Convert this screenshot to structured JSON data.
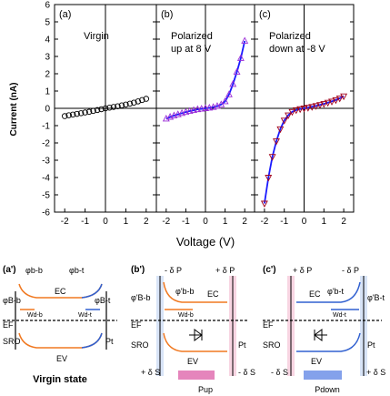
{
  "figure": {
    "top": {
      "ylabel": "Current (nA)",
      "xlabel": "Voltage (V)",
      "ytick_labels": [
        "6",
        "5",
        "4",
        "3",
        "2",
        "1",
        "0",
        "-1",
        "-2",
        "-3",
        "-4",
        "-5",
        "-6"
      ],
      "xtick_labels": [
        "-2",
        "-1",
        "0",
        "1",
        "2"
      ],
      "panels": [
        {
          "id": "a",
          "tag": "(a)",
          "caption": [
            "Virgin"
          ]
        },
        {
          "id": "b",
          "tag": "(b)",
          "caption": [
            "Polarized",
            "up at 8 V"
          ]
        },
        {
          "id": "c",
          "tag": "(c)",
          "caption": [
            "Polarized",
            "down at -8 V"
          ]
        }
      ]
    },
    "bottom": {
      "a": {
        "tag": "(a')",
        "phi_bb": "φb-b",
        "phi_bt": "φb-t",
        "phi_Bb": "φB-b",
        "phi_Bt": "φB-t",
        "Ec": "EC",
        "Ef": "EF",
        "Ev": "EV",
        "wdb": "Wd-b",
        "wdt": "Wd-t",
        "left": "SRO",
        "right": "Pt",
        "caption": "Virgin state"
      },
      "b": {
        "tag": "(b')",
        "dp_left": "- δ P",
        "dp_right": "+ δ P",
        "phi_Bb": "φ'B-b",
        "phi_bb": "φ'b-b",
        "Ec": "EC",
        "Ef": "EF",
        "Ev": "EV",
        "wdb": "Wd-b",
        "left": "SRO",
        "right": "Pt",
        "ds_left": "+ δ S",
        "ds_right": "- δ S",
        "pol": "Pup"
      },
      "c": {
        "tag": "(c')",
        "dp_left": "+ δ P",
        "dp_right": "- δ P",
        "phi_bt": "φ'b-t",
        "phi_Bt": "φ'B-t",
        "Ec": "EC",
        "Ef": "EF",
        "Ev": "EV",
        "wdt": "Wd-t",
        "left": "SRO",
        "right": "Pt",
        "ds_left": "- δ S",
        "ds_right": "+ δ S",
        "pol": "Pdown"
      }
    }
  },
  "chart_data": {
    "type": "scatter",
    "ylabel": "Current (nA)",
    "xlabel": "Voltage (V)",
    "ylim": [
      -6,
      6
    ],
    "xlim_per_panel": [
      -2.5,
      2.5
    ],
    "series": [
      {
        "name": "Virgin",
        "panel": "a",
        "marker": "circle",
        "color": "#000000",
        "x": [
          -2.0,
          -1.8,
          -1.6,
          -1.4,
          -1.2,
          -1.0,
          -0.8,
          -0.6,
          -0.4,
          -0.2,
          0.0,
          0.2,
          0.4,
          0.6,
          0.8,
          1.0,
          1.2,
          1.4,
          1.6,
          1.8,
          2.0
        ],
        "y": [
          -0.45,
          -0.4,
          -0.36,
          -0.32,
          -0.28,
          -0.24,
          -0.2,
          -0.15,
          -0.1,
          -0.05,
          0.0,
          0.04,
          0.08,
          0.12,
          0.17,
          0.22,
          0.27,
          0.33,
          0.4,
          0.48,
          0.55
        ]
      },
      {
        "name": "Polarized up at 8 V",
        "panel": "b",
        "marker": "triangle-up",
        "color": "#9a2bd6",
        "x": [
          -2.0,
          -1.8,
          -1.6,
          -1.4,
          -1.2,
          -1.0,
          -0.8,
          -0.6,
          -0.4,
          -0.2,
          0.0,
          0.2,
          0.4,
          0.6,
          0.8,
          1.0,
          1.2,
          1.4,
          1.6,
          1.8,
          2.0
        ],
        "y": [
          -0.6,
          -0.5,
          -0.42,
          -0.35,
          -0.28,
          -0.22,
          -0.16,
          -0.11,
          -0.06,
          -0.03,
          0.0,
          0.03,
          0.07,
          0.13,
          0.22,
          0.4,
          0.8,
          1.4,
          2.1,
          2.9,
          3.9
        ]
      },
      {
        "name": "Polarized down at -8 V",
        "panel": "c",
        "marker": "triangle-down",
        "color": "#a0001a",
        "x": [
          -2.0,
          -1.8,
          -1.6,
          -1.4,
          -1.2,
          -1.0,
          -0.8,
          -0.6,
          -0.4,
          -0.2,
          0.0,
          0.2,
          0.4,
          0.6,
          0.8,
          1.0,
          1.2,
          1.4,
          1.6,
          1.8,
          2.0
        ],
        "y": [
          -5.5,
          -4.0,
          -2.8,
          -1.9,
          -1.2,
          -0.7,
          -0.4,
          -0.2,
          -0.1,
          -0.04,
          0.0,
          0.04,
          0.09,
          0.14,
          0.2,
          0.26,
          0.33,
          0.4,
          0.48,
          0.58,
          0.7
        ]
      }
    ],
    "fits": [
      {
        "panel": "b",
        "color": "#1a1aff"
      },
      {
        "panel": "c",
        "color": "#1a1aff"
      }
    ]
  }
}
